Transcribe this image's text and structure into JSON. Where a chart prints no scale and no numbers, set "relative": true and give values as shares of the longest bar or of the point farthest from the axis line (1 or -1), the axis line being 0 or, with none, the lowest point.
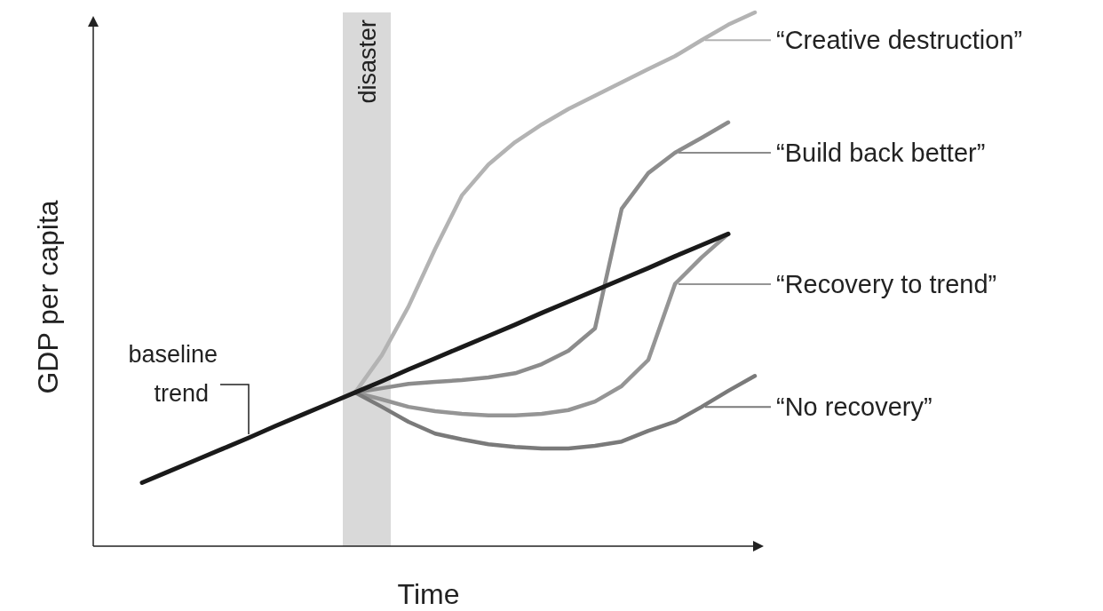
{
  "chart_data": {
    "type": "line",
    "relative": true,
    "xlabel": "Time",
    "ylabel": "GDP per capita",
    "legend": "right",
    "line_style": "solid",
    "categories": [
      null,
      null,
      null,
      null,
      null,
      null,
      null,
      null,
      null,
      null,
      null,
      null,
      null,
      null,
      null,
      null,
      null,
      null,
      null,
      null,
      null,
      null,
      null,
      null
    ],
    "annotations": [
      "disaster"
    ],
    "series": [
      {
        "name": "“Creative destruction”",
        "color": "#b3b3b3",
        "values": [
          null,
          null,
          null,
          null,
          null,
          null,
          null,
          null,
          0.288,
          0.358,
          0.449,
          0.557,
          0.657,
          0.715,
          0.757,
          0.79,
          0.819,
          0.844,
          0.869,
          0.894,
          0.918,
          0.948,
          0.977,
          1.0
        ]
      },
      {
        "name": "“Build back better”",
        "color": "#8c8c8c",
        "values": [
          null,
          null,
          null,
          null,
          null,
          null,
          null,
          null,
          0.288,
          0.296,
          0.304,
          0.308,
          0.311,
          0.316,
          0.324,
          0.341,
          0.366,
          0.408,
          0.632,
          0.699,
          0.737,
          0.765,
          0.794,
          null
        ]
      },
      {
        "name": "“Recovery to trend”",
        "color": "#959595",
        "values": [
          null,
          null,
          null,
          null,
          null,
          null,
          null,
          null,
          0.288,
          0.275,
          0.261,
          0.253,
          0.248,
          0.245,
          0.245,
          0.248,
          0.255,
          0.271,
          0.3,
          0.349,
          0.491,
          0.541,
          0.585,
          null
        ]
      },
      {
        "name": "“No recovery”",
        "color": "#7a7a7a",
        "values": [
          null,
          null,
          null,
          null,
          null,
          null,
          null,
          null,
          0.288,
          0.261,
          0.233,
          0.211,
          0.2,
          0.191,
          0.186,
          0.183,
          0.183,
          0.188,
          0.196,
          0.216,
          0.233,
          0.261,
          0.291,
          0.319
        ]
      },
      {
        "name": "baseline trend",
        "color": "#1a1a1a",
        "values": [
          0.119,
          0.14,
          0.161,
          0.182,
          0.203,
          0.225,
          0.246,
          0.267,
          0.288,
          0.309,
          0.331,
          0.352,
          0.373,
          0.394,
          0.415,
          0.437,
          0.458,
          0.479,
          0.5,
          0.521,
          0.543,
          0.564,
          0.585,
          null
        ]
      }
    ]
  }
}
